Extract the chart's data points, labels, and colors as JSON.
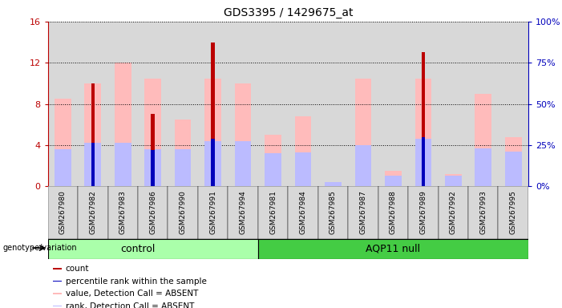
{
  "title": "GDS3395 / 1429675_at",
  "samples": [
    "GSM267980",
    "GSM267982",
    "GSM267983",
    "GSM267986",
    "GSM267990",
    "GSM267991",
    "GSM267994",
    "GSM267981",
    "GSM267984",
    "GSM267985",
    "GSM267987",
    "GSM267988",
    "GSM267989",
    "GSM267992",
    "GSM267993",
    "GSM267995"
  ],
  "groups": [
    "control",
    "control",
    "control",
    "control",
    "control",
    "control",
    "control",
    "AQP11 null",
    "AQP11 null",
    "AQP11 null",
    "AQP11 null",
    "AQP11 null",
    "AQP11 null",
    "AQP11 null",
    "AQP11 null",
    "AQP11 null"
  ],
  "n_control": 7,
  "n_aqp11": 9,
  "red_count": [
    0,
    10,
    0,
    7,
    0,
    14,
    0,
    0,
    0,
    0,
    0,
    0,
    13,
    0,
    0,
    0
  ],
  "blue_rank": [
    0,
    4.2,
    0,
    3.5,
    0,
    4.6,
    0,
    0,
    0,
    0,
    0,
    0,
    4.8,
    0,
    0,
    0
  ],
  "value_absent": [
    8.5,
    10.0,
    12.0,
    10.5,
    6.5,
    10.5,
    10.0,
    5.0,
    6.8,
    0.4,
    10.5,
    1.5,
    10.5,
    1.2,
    9.0,
    4.8
  ],
  "rank_absent": [
    3.6,
    4.2,
    4.2,
    3.6,
    3.6,
    4.4,
    4.4,
    3.2,
    3.3,
    0.4,
    4.0,
    1.0,
    4.6,
    1.0,
    3.7,
    3.4
  ],
  "ylim_left": [
    0,
    16
  ],
  "ylim_right": [
    0,
    100
  ],
  "yticks_left": [
    0,
    4,
    8,
    12,
    16
  ],
  "yticks_right": [
    0,
    25,
    50,
    75,
    100
  ],
  "color_red": "#bb0000",
  "color_blue": "#0000bb",
  "color_pink": "#ffbbbb",
  "color_lightblue": "#bbbbff",
  "color_green_light": "#aaffaa",
  "color_green_dark": "#44cc44",
  "color_col_bg": "#d8d8d8"
}
